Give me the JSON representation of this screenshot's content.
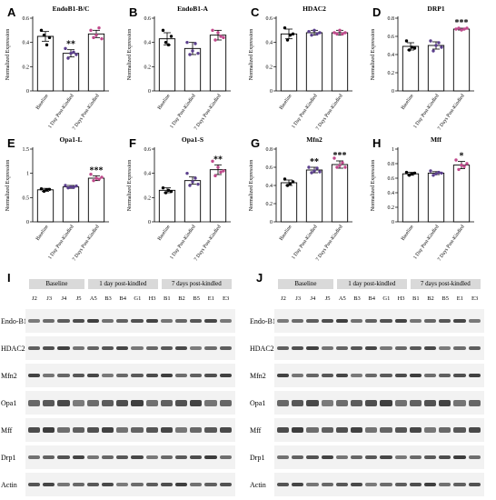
{
  "chart_data": [
    {
      "panel": "A",
      "type": "bar",
      "title": "EndoB1-B/C",
      "ylabel": "Normalized Expression",
      "categories": [
        "Baseline",
        "1 Day Post-Kindled",
        "7 Days Post-Kindled"
      ],
      "values": [
        0.45,
        0.31,
        0.47
      ],
      "errors": [
        0.04,
        0.03,
        0.03
      ],
      "ylim": [
        0,
        0.6
      ],
      "yticks": [
        0,
        0.2,
        0.4,
        0.6
      ],
      "significance": [
        "",
        "**",
        ""
      ],
      "points": [
        [
          0.5,
          0.46,
          0.38,
          0.44
        ],
        [
          0.35,
          0.27,
          0.31,
          0.32,
          0.3
        ],
        [
          0.5,
          0.44,
          0.46,
          0.52,
          0.43
        ]
      ]
    },
    {
      "panel": "B",
      "type": "bar",
      "title": "EndoB1-A",
      "ylabel": "Normalized Expression",
      "categories": [
        "Baseline",
        "1 Day Post-Kindled",
        "7 Days Post-Kindled"
      ],
      "values": [
        0.43,
        0.35,
        0.46
      ],
      "errors": [
        0.05,
        0.05,
        0.04
      ],
      "ylim": [
        0,
        0.6
      ],
      "yticks": [
        0,
        0.2,
        0.4,
        0.6
      ],
      "significance": [
        "",
        "",
        ""
      ],
      "points": [
        [
          0.5,
          0.4,
          0.38,
          0.45
        ],
        [
          0.4,
          0.3,
          0.33,
          0.39,
          0.31
        ],
        [
          0.5,
          0.42,
          0.48,
          0.45,
          0.44
        ]
      ]
    },
    {
      "panel": "C",
      "type": "bar",
      "title": "HDAC2",
      "ylabel": "Normalized Expression",
      "categories": [
        "Baseline",
        "1 Day Post-Kindled",
        "7 Days Post-Kindled"
      ],
      "values": [
        0.47,
        0.48,
        0.48
      ],
      "errors": [
        0.04,
        0.02,
        0.02
      ],
      "ylim": [
        0,
        0.6
      ],
      "yticks": [
        0,
        0.2,
        0.4,
        0.6
      ],
      "significance": [
        "",
        "",
        ""
      ],
      "points": [
        [
          0.52,
          0.42,
          0.46,
          0.47
        ],
        [
          0.49,
          0.46,
          0.5,
          0.47,
          0.48
        ],
        [
          0.48,
          0.47,
          0.5,
          0.47,
          0.48
        ]
      ]
    },
    {
      "panel": "D",
      "type": "bar",
      "title": "DRP1",
      "ylabel": "Normalized Expression",
      "categories": [
        "Baseline",
        "1 Day Post-Kindled",
        "7 Days Post-Kindled"
      ],
      "values": [
        0.49,
        0.5,
        0.68
      ],
      "errors": [
        0.04,
        0.04,
        0.01
      ],
      "ylim": [
        0,
        0.8
      ],
      "yticks": [
        0,
        0.2,
        0.4,
        0.6,
        0.8
      ],
      "significance": [
        "",
        "",
        "***"
      ],
      "points": [
        [
          0.55,
          0.45,
          0.48,
          0.47
        ],
        [
          0.55,
          0.44,
          0.5,
          0.53,
          0.48
        ],
        [
          0.68,
          0.69,
          0.67,
          0.68,
          0.69
        ]
      ]
    },
    {
      "panel": "E",
      "type": "bar",
      "title": "Opa1-L",
      "ylabel": "Normalized Expression",
      "categories": [
        "Baseline",
        "1 Day Post-Kindled",
        "7 Days Post-Kindled"
      ],
      "values": [
        0.66,
        0.72,
        0.9
      ],
      "errors": [
        0.03,
        0.03,
        0.05
      ],
      "ylim": [
        0,
        1.5
      ],
      "yticks": [
        0,
        0.5,
        1,
        1.5
      ],
      "significance": [
        "",
        "",
        "***"
      ],
      "points": [
        [
          0.68,
          0.63,
          0.66,
          0.67
        ],
        [
          0.75,
          0.7,
          0.72,
          0.71,
          0.74
        ],
        [
          0.98,
          0.85,
          0.9,
          0.88,
          0.92
        ]
      ]
    },
    {
      "panel": "F",
      "type": "bar",
      "title": "Opa1-S",
      "ylabel": "Normalized Expression",
      "categories": [
        "Baseline",
        "1 Day Post-Kindled",
        "7 Days Post-Kindled"
      ],
      "values": [
        0.26,
        0.34,
        0.43
      ],
      "errors": [
        0.02,
        0.03,
        0.04
      ],
      "ylim": [
        0,
        0.6
      ],
      "yticks": [
        0,
        0.2,
        0.4,
        0.6
      ],
      "significance": [
        "",
        "",
        "**"
      ],
      "points": [
        [
          0.28,
          0.24,
          0.26,
          0.25
        ],
        [
          0.4,
          0.3,
          0.33,
          0.36,
          0.31
        ],
        [
          0.5,
          0.38,
          0.45,
          0.41,
          0.42
        ]
      ]
    },
    {
      "panel": "G",
      "type": "bar",
      "title": "Mfn2",
      "ylabel": "Normalized Expression",
      "categories": [
        "Baseline",
        "1 Day Post-Kindled",
        "7 Days Post-Kindled"
      ],
      "values": [
        0.43,
        0.57,
        0.63
      ],
      "errors": [
        0.03,
        0.03,
        0.04
      ],
      "ylim": [
        0,
        0.8
      ],
      "yticks": [
        0,
        0.2,
        0.4,
        0.6,
        0.8
      ],
      "significance": [
        "",
        "**",
        "***"
      ],
      "points": [
        [
          0.47,
          0.4,
          0.42,
          0.44
        ],
        [
          0.6,
          0.54,
          0.56,
          0.59,
          0.55
        ],
        [
          0.7,
          0.6,
          0.62,
          0.65,
          0.6
        ]
      ]
    },
    {
      "panel": "H",
      "type": "bar",
      "title": "Mff",
      "ylabel": "Normalized Expression",
      "categories": [
        "Baseline",
        "1 Day Post-Kindled",
        "7 Days Post-Kindled"
      ],
      "values": [
        0.66,
        0.67,
        0.78
      ],
      "errors": [
        0.02,
        0.02,
        0.05
      ],
      "ylim": [
        0,
        1
      ],
      "yticks": [
        0,
        0.2,
        0.4,
        0.6,
        0.8,
        1
      ],
      "significance": [
        "",
        "",
        "*"
      ],
      "points": [
        [
          0.68,
          0.64,
          0.66,
          0.67
        ],
        [
          0.7,
          0.64,
          0.66,
          0.68,
          0.67
        ],
        [
          0.85,
          0.72,
          0.78,
          0.76,
          0.8
        ]
      ]
    }
  ],
  "panel_letters": {
    "A": "A",
    "B": "B",
    "C": "C",
    "D": "D",
    "E": "E",
    "F": "F",
    "G": "G",
    "H": "H",
    "I": "I",
    "J": "J"
  },
  "blot_I": {
    "groups": [
      "Baseline",
      "1 day post-kindled",
      "7 days post-kindled"
    ],
    "lanes": [
      "J2",
      "J3",
      "J4",
      "J5",
      "A5",
      "B3",
      "B4",
      "G1",
      "H3",
      "B1",
      "B2",
      "B5",
      "E1",
      "E3"
    ],
    "proteins": [
      "Endo-B1",
      "HDAC2",
      "Mfn2",
      "Opa1",
      "Mff",
      "Drp1",
      "Actin"
    ]
  },
  "blot_J": {
    "groups": [
      "Baseline",
      "1 day post-kindled",
      "7 days post-kindled"
    ],
    "lanes": [
      "J2",
      "J3",
      "J4",
      "J5",
      "A5",
      "B3",
      "B4",
      "G1",
      "H3",
      "B1",
      "B2",
      "B5",
      "E1",
      "E3"
    ],
    "proteins": [
      "Endo-B1",
      "HDAC2",
      "Mfn2",
      "Opa1",
      "Mff",
      "Drp1",
      "Actin"
    ]
  },
  "colors": {
    "bar_fill": "#ffffff",
    "bar_stroke": "#000000",
    "point_baseline": "#000000",
    "point_1day": "#5b3f8c",
    "point_7day": "#c04a8c",
    "band": "#1a1a1a",
    "strip": "#f2f2f2",
    "group_box": "#d9d9d9"
  }
}
